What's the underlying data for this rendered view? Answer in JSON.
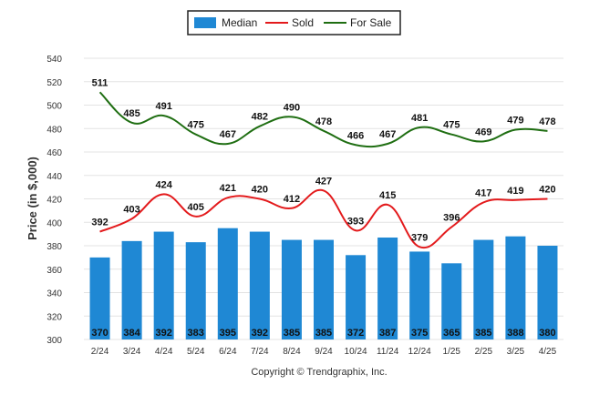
{
  "chart_data": {
    "type": "bar",
    "categories": [
      "2/24",
      "3/24",
      "4/24",
      "5/24",
      "6/24",
      "7/24",
      "8/24",
      "9/24",
      "10/24",
      "11/24",
      "12/24",
      "1/25",
      "2/25",
      "3/25",
      "4/25"
    ],
    "ylabel": "Price (in $,000)",
    "ylim": [
      300,
      540
    ],
    "yticks": [
      300,
      320,
      340,
      360,
      380,
      400,
      420,
      440,
      460,
      480,
      500,
      520,
      540
    ],
    "grid": true,
    "legend_position": "top-center",
    "series": [
      {
        "name": "Median",
        "type": "bar",
        "color": "#1f88d4",
        "values": [
          370,
          384,
          392,
          383,
          395,
          392,
          385,
          385,
          372,
          387,
          375,
          365,
          385,
          388,
          380
        ]
      },
      {
        "name": "Sold",
        "type": "line",
        "color": "#e31a1c",
        "values": [
          392,
          403,
          424,
          405,
          421,
          420,
          412,
          427,
          393,
          415,
          379,
          396,
          417,
          419,
          420
        ]
      },
      {
        "name": "For Sale",
        "type": "line",
        "color": "#1f6e12",
        "values": [
          511,
          485,
          491,
          475,
          467,
          482,
          490,
          478,
          466,
          467,
          481,
          475,
          469,
          479,
          478
        ]
      }
    ],
    "footer": "Copyright © Trendgraphix, Inc."
  }
}
